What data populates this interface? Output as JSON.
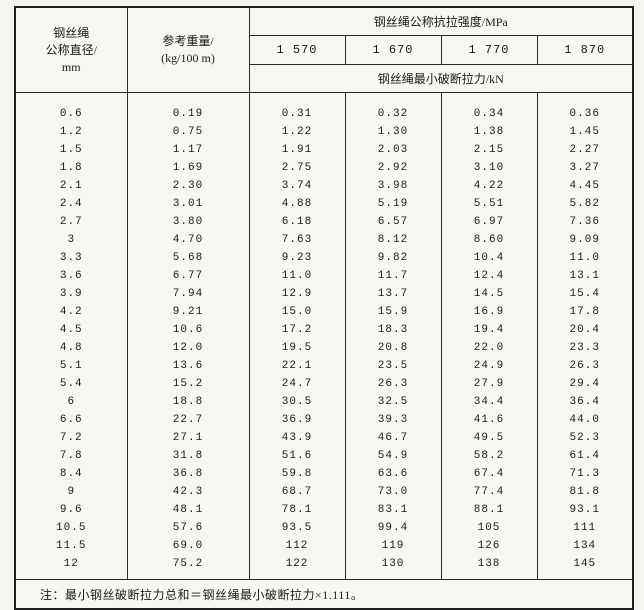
{
  "table": {
    "header": {
      "diameter_lines": [
        "钢丝绳",
        "公称直径/",
        "mm"
      ],
      "weight_lines": [
        "参考重量/",
        "(kg/100 m)"
      ],
      "strength_title": "钢丝绳公称抗拉强度/MPa",
      "strength_grades": [
        "1 570",
        "1 670",
        "1 770",
        "1 870"
      ],
      "breaking_title": "钢丝绳最小破断拉力/kN"
    },
    "rows": [
      [
        "0.6",
        "0.19",
        "0.31",
        "0.32",
        "0.34",
        "0.36"
      ],
      [
        "1.2",
        "0.75",
        "1.22",
        "1.30",
        "1.38",
        "1.45"
      ],
      [
        "1.5",
        "1.17",
        "1.91",
        "2.03",
        "2.15",
        "2.27"
      ],
      [
        "1.8",
        "1.69",
        "2.75",
        "2.92",
        "3.10",
        "3.27"
      ],
      [
        "2.1",
        "2.30",
        "3.74",
        "3.98",
        "4.22",
        "4.45"
      ],
      [
        "2.4",
        "3.01",
        "4.88",
        "5.19",
        "5.51",
        "5.82"
      ],
      [
        "2.7",
        "3.80",
        "6.18",
        "6.57",
        "6.97",
        "7.36"
      ],
      [
        "3",
        "4.70",
        "7.63",
        "8.12",
        "8.60",
        "9.09"
      ],
      [
        "3.3",
        "5.68",
        "9.23",
        "9.82",
        "10.4",
        "11.0"
      ],
      [
        "3.6",
        "6.77",
        "11.0",
        "11.7",
        "12.4",
        "13.1"
      ],
      [
        "3.9",
        "7.94",
        "12.9",
        "13.7",
        "14.5",
        "15.4"
      ],
      [
        "4.2",
        "9.21",
        "15.0",
        "15.9",
        "16.9",
        "17.8"
      ],
      [
        "4.5",
        "10.6",
        "17.2",
        "18.3",
        "19.4",
        "20.4"
      ],
      [
        "4.8",
        "12.0",
        "19.5",
        "20.8",
        "22.0",
        "23.3"
      ],
      [
        "5.1",
        "13.6",
        "22.1",
        "23.5",
        "24.9",
        "26.3"
      ],
      [
        "5.4",
        "15.2",
        "24.7",
        "26.3",
        "27.9",
        "29.4"
      ],
      [
        "6",
        "18.8",
        "30.5",
        "32.5",
        "34.4",
        "36.4"
      ],
      [
        "6.6",
        "22.7",
        "36.9",
        "39.3",
        "41.6",
        "44.0"
      ],
      [
        "7.2",
        "27.1",
        "43.9",
        "46.7",
        "49.5",
        "52.3"
      ],
      [
        "7.8",
        "31.8",
        "51.6",
        "54.9",
        "58.2",
        "61.4"
      ],
      [
        "8.4",
        "36.8",
        "59.8",
        "63.6",
        "67.4",
        "71.3"
      ],
      [
        "9",
        "42.3",
        "68.7",
        "73.0",
        "77.4",
        "81.8"
      ],
      [
        "9.6",
        "48.1",
        "78.1",
        "83.1",
        "88.1",
        "93.1"
      ],
      [
        "10.5",
        "57.6",
        "93.5",
        "99.4",
        "105",
        "111"
      ],
      [
        "11.5",
        "69.0",
        "112",
        "119",
        "126",
        "134"
      ],
      [
        "12",
        "75.2",
        "122",
        "130",
        "138",
        "145"
      ]
    ],
    "note": "注：最小钢丝破断拉力总和＝钢丝绳最小破断拉力×1.111。"
  }
}
